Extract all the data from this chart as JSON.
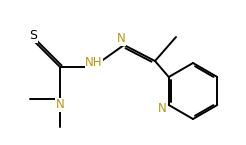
{
  "bg_color": "#ffffff",
  "line_color": "#000000",
  "bond_lw": 1.4,
  "dbo": 0.018,
  "font_size": 8.5,
  "atom_color_N": "#b8960a",
  "atom_color_S": "#000000",
  "figsize": [
    2.46,
    1.45
  ],
  "dpi": 100,
  "xlim": [
    0,
    2.46
  ],
  "ylim": [
    0,
    1.45
  ]
}
